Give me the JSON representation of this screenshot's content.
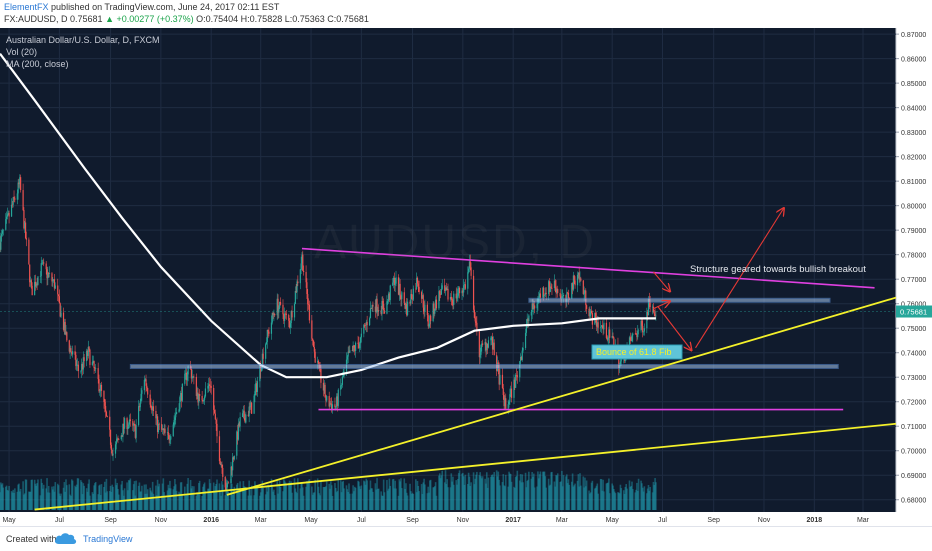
{
  "header": {
    "author": "ElementFX",
    "published": "published on TradingView.com, June 24, 2017 02:11 EST",
    "symbol": "FX:AUDUSD, D",
    "o": "O:0.75404",
    "h": "H:0.75828",
    "l": "L:0.75363",
    "c": "C:0.75681",
    "price": "0.75681",
    "change": "+0.00277 (+0.37%)"
  },
  "legend": {
    "title": "Australian Dollar/U.S. Dollar, D, FXCM",
    "vol": "Vol (20)",
    "ma": "MA (200, close)"
  },
  "watermark": "AUDUSD, D",
  "footer": {
    "created": "Created with",
    "brand": "TradingView"
  },
  "colors": {
    "up": "#26a69a",
    "down": "#ef5350",
    "magenta": "#e040e0",
    "yellow": "#f4f12a",
    "zone": "#a8c8f0",
    "arrow": "#e53935",
    "ma": "#ffffff",
    "volume": "#22a3b8",
    "background": "#101b2d"
  },
  "chart_data": {
    "type": "candlestick",
    "title": "Australian Dollar/U.S. Dollar, D, FXCM",
    "ylim": [
      0.675,
      0.8725
    ],
    "yticks": [
      0.68,
      0.69,
      0.7,
      0.71,
      0.72,
      0.73,
      0.74,
      0.75,
      0.76,
      0.77,
      0.78,
      0.79,
      0.8,
      0.81,
      0.82,
      0.83,
      0.84,
      0.85,
      0.86,
      0.87
    ],
    "xlabels": [
      "May",
      "Jul",
      "Sep",
      "Nov",
      "2016",
      "Mar",
      "May",
      "Jul",
      "Sep",
      "Nov",
      "2017",
      "Mar",
      "May",
      "Jul",
      "Sep",
      "Nov",
      "2018",
      "Mar"
    ],
    "x_range": [
      "2015-04-20",
      "2018-04-10"
    ],
    "last_price": 0.75681,
    "price_path": [
      [
        "2015-04-20",
        0.785
      ],
      [
        "2015-05-05",
        0.8
      ],
      [
        "2015-05-14",
        0.809
      ],
      [
        "2015-05-28",
        0.765
      ],
      [
        "2015-06-10",
        0.775
      ],
      [
        "2015-06-25",
        0.768
      ],
      [
        "2015-07-10",
        0.745
      ],
      [
        "2015-07-25",
        0.732
      ],
      [
        "2015-08-05",
        0.74
      ],
      [
        "2015-08-20",
        0.725
      ],
      [
        "2015-09-04",
        0.699
      ],
      [
        "2015-09-20",
        0.712
      ],
      [
        "2015-10-01",
        0.708
      ],
      [
        "2015-10-12",
        0.73
      ],
      [
        "2015-10-28",
        0.71
      ],
      [
        "2015-11-10",
        0.705
      ],
      [
        "2015-11-25",
        0.722
      ],
      [
        "2015-12-05",
        0.735
      ],
      [
        "2015-12-18",
        0.72
      ],
      [
        "2015-12-31",
        0.728
      ],
      [
        "2016-01-10",
        0.7
      ],
      [
        "2016-01-20",
        0.684
      ],
      [
        "2016-02-05",
        0.712
      ],
      [
        "2016-02-20",
        0.718
      ],
      [
        "2016-03-05",
        0.742
      ],
      [
        "2016-03-20",
        0.76
      ],
      [
        "2016-04-05",
        0.752
      ],
      [
        "2016-04-20",
        0.779
      ],
      [
        "2016-05-05",
        0.74
      ],
      [
        "2016-05-20",
        0.72
      ],
      [
        "2016-05-31",
        0.718
      ],
      [
        "2016-06-15",
        0.738
      ],
      [
        "2016-06-30",
        0.745
      ],
      [
        "2016-07-15",
        0.76
      ],
      [
        "2016-07-30",
        0.758
      ],
      [
        "2016-08-10",
        0.77
      ],
      [
        "2016-08-25",
        0.758
      ],
      [
        "2016-09-07",
        0.77
      ],
      [
        "2016-09-20",
        0.752
      ],
      [
        "2016-10-05",
        0.765
      ],
      [
        "2016-10-20",
        0.762
      ],
      [
        "2016-11-05",
        0.768
      ],
      [
        "2016-11-09",
        0.776
      ],
      [
        "2016-11-20",
        0.74
      ],
      [
        "2016-12-05",
        0.746
      ],
      [
        "2016-12-23",
        0.717
      ],
      [
        "2017-01-05",
        0.73
      ],
      [
        "2017-01-20",
        0.755
      ],
      [
        "2017-02-05",
        0.765
      ],
      [
        "2017-02-20",
        0.768
      ],
      [
        "2017-03-05",
        0.76
      ],
      [
        "2017-03-20",
        0.773
      ],
      [
        "2017-04-05",
        0.755
      ],
      [
        "2017-04-20",
        0.75
      ],
      [
        "2017-05-05",
        0.743
      ],
      [
        "2017-05-10",
        0.735
      ],
      [
        "2017-05-25",
        0.746
      ],
      [
        "2017-06-10",
        0.752
      ],
      [
        "2017-06-15",
        0.762
      ],
      [
        "2017-06-23",
        0.75681
      ]
    ],
    "ma_path": [
      [
        "2015-04-20",
        0.862
      ],
      [
        "2015-06-01",
        0.843
      ],
      [
        "2015-08-01",
        0.815
      ],
      [
        "2015-09-15",
        0.795
      ],
      [
        "2015-11-01",
        0.775
      ],
      [
        "2016-01-01",
        0.753
      ],
      [
        "2016-03-01",
        0.735
      ],
      [
        "2016-04-01",
        0.73
      ],
      [
        "2016-05-20",
        0.73
      ],
      [
        "2016-07-01",
        0.733
      ],
      [
        "2016-08-15",
        0.738
      ],
      [
        "2016-10-01",
        0.742
      ],
      [
        "2016-11-15",
        0.749
      ],
      [
        "2017-01-01",
        0.751
      ],
      [
        "2017-03-01",
        0.752
      ],
      [
        "2017-04-15",
        0.754
      ],
      [
        "2017-06-23",
        0.754
      ]
    ],
    "drawings": {
      "resistance_trendline": [
        [
          "2016-04-20",
          0.7825
        ],
        [
          "2018-03-15",
          0.7665
        ]
      ],
      "support_line": [
        [
          "2016-05-10",
          0.7168
        ],
        [
          "2018-02-05",
          0.7168
        ]
      ],
      "rising_trendline_steep": [
        [
          "2016-01-20",
          0.682
        ],
        [
          "2018-04-10",
          0.7625
        ]
      ],
      "rising_trendline_shallow": [
        [
          "2015-06-01",
          0.676
        ],
        [
          "2018-04-10",
          0.711
        ]
      ],
      "resistance_zone": [
        [
          "2017-01-20",
          0.7612
        ],
        [
          "2018-01-20",
          0.7622
        ]
      ],
      "support_zone": [
        [
          "2015-09-25",
          0.734
        ],
        [
          "2018-01-30",
          0.7352
        ]
      ],
      "arrows": [
        [
          [
            "2017-06-20",
            0.758
          ],
          [
            "2017-07-10",
            0.761
          ]
        ],
        [
          [
            "2017-06-20",
            0.773
          ],
          [
            "2017-07-10",
            0.765
          ]
        ],
        [
          [
            "2017-06-25",
            0.759
          ],
          [
            "2017-08-05",
            0.741
          ]
        ],
        [
          [
            "2017-08-10",
            0.742
          ],
          [
            "2017-11-25",
            0.799
          ]
        ]
      ]
    },
    "annotations": {
      "breakout_note": "Structure geared towards bullish breakout",
      "fib_note": "Bounce of 61.8 Fib"
    }
  }
}
